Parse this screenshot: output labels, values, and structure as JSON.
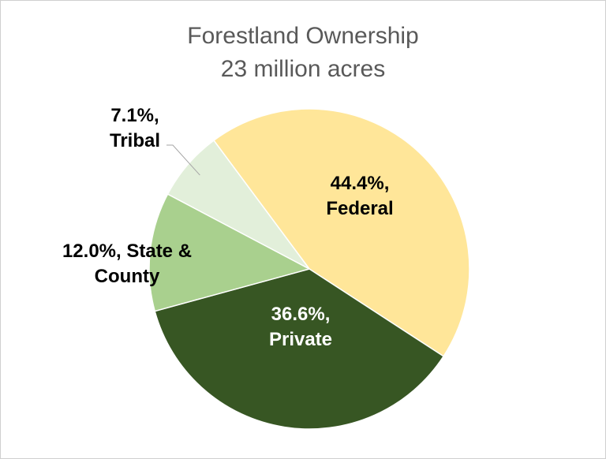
{
  "chart_data": {
    "type": "pie",
    "title": "Forestland Ownership",
    "subtitle": "23 million acres",
    "categories": [
      "Federal",
      "Private",
      "State & County",
      "Tribal"
    ],
    "values": [
      44.4,
      36.6,
      12.0,
      7.1
    ],
    "value_labels": [
      "44.4%,",
      "36.6%,",
      "12.0%,",
      "7.1%,"
    ],
    "colors": [
      "#ffe699",
      "#375623",
      "#a9d08e",
      "#e2efda"
    ]
  }
}
